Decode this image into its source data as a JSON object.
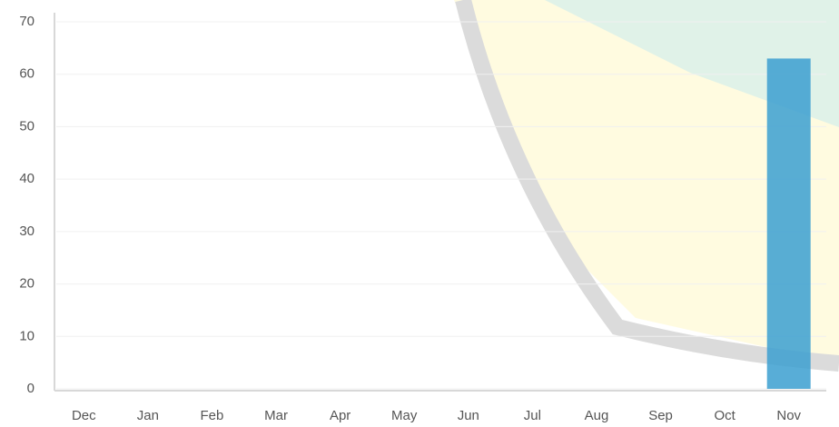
{
  "chart_data": {
    "type": "bar",
    "categories": [
      "Dec",
      "Jan",
      "Feb",
      "Mar",
      "Apr",
      "May",
      "Jun",
      "Jul",
      "Aug",
      "Sep",
      "Oct",
      "Nov"
    ],
    "values": [
      0,
      0,
      0,
      0,
      0,
      0,
      0,
      0,
      0,
      0,
      0,
      63
    ],
    "color": "#3b9fd0",
    "ylim": [
      0,
      70
    ],
    "yticks": [
      0,
      10,
      20,
      30,
      40,
      50,
      60,
      70
    ],
    "grid": true
  }
}
